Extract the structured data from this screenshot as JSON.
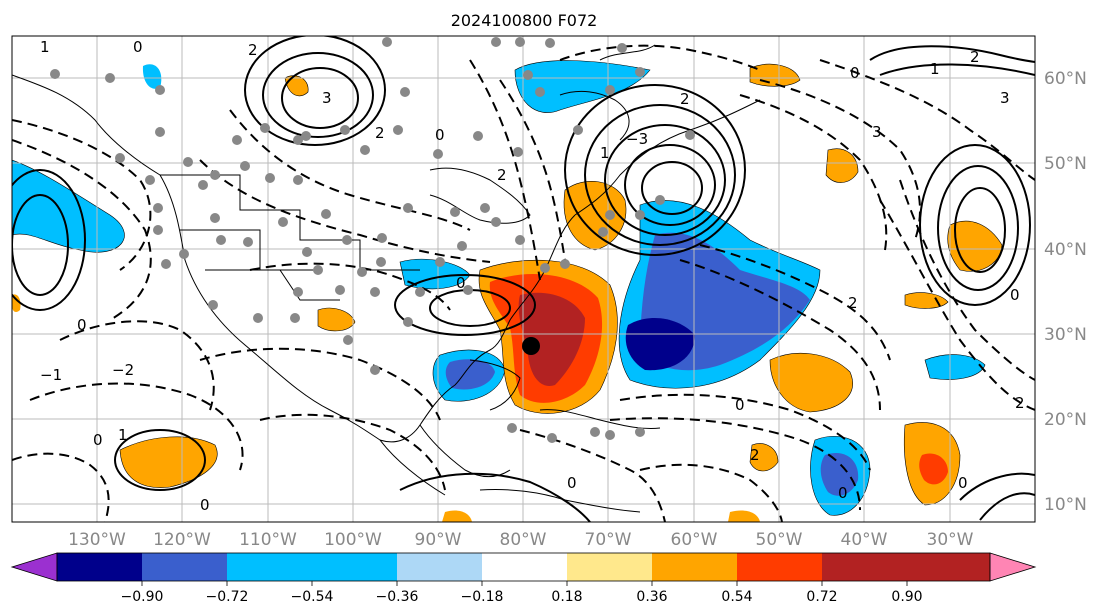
{
  "title": "2024100800 F072",
  "longitude_labels": [
    "130°W",
    "120°W",
    "110°W",
    "100°W",
    "90°W",
    "80°W",
    "70°W",
    "60°W",
    "50°W",
    "40°W",
    "30°W"
  ],
  "latitude_labels": [
    "60°N",
    "50°N",
    "40°N",
    "30°N",
    "20°N",
    "10°N"
  ],
  "colorbar": {
    "tick_labels": [
      "−0.90",
      "−0.72",
      "−0.54",
      "−0.36",
      "−0.18",
      "0.18",
      "0.36",
      "0.54",
      "0.72",
      "0.90"
    ],
    "colors": [
      "#9b30d0",
      "#00008b",
      "#3a5fcd",
      "#00bfff",
      "#add8f6",
      "#ffffff",
      "#ffe88c",
      "#ffa500",
      "#ff3c00",
      "#b22222",
      "#ff85b4"
    ]
  },
  "contour_labels": [
    "0",
    "2",
    "1",
    "3",
    "−1",
    "−2",
    "−3"
  ],
  "storm_marker": "center-dot"
}
